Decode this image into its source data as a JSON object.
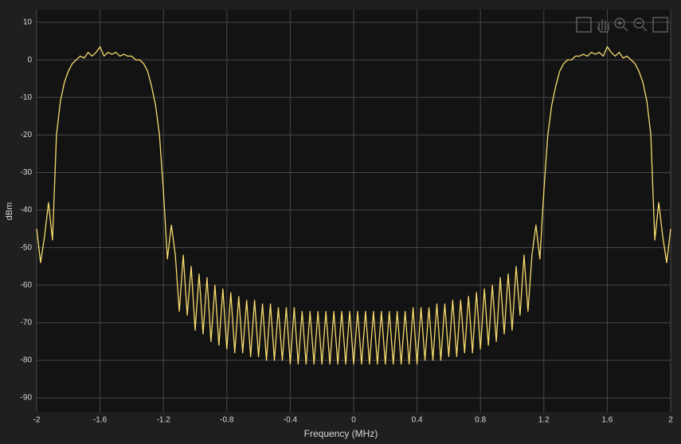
{
  "chart_data": {
    "type": "line",
    "xlabel": "Frequency (MHz)",
    "ylabel": "dBm",
    "xlim": [
      -2,
      2
    ],
    "ylim": [
      -93.8,
      13.4
    ],
    "xticks": [
      -2,
      -1.6,
      -1.2,
      -0.8,
      -0.4,
      0,
      0.4,
      0.8,
      1.2,
      1.6,
      2
    ],
    "yticks": [
      -90,
      -80,
      -70,
      -60,
      -50,
      -40,
      -30,
      -20,
      -10,
      0,
      10
    ],
    "grid": true,
    "x": [
      -2,
      -1.975,
      -1.95,
      -1.925,
      -1.9,
      -1.875,
      -1.85,
      -1.825,
      -1.8,
      -1.775,
      -1.75,
      -1.725,
      -1.7,
      -1.675,
      -1.65,
      -1.625,
      -1.6,
      -1.575,
      -1.55,
      -1.525,
      -1.5,
      -1.475,
      -1.45,
      -1.425,
      -1.4,
      -1.375,
      -1.35,
      -1.325,
      -1.3,
      -1.275,
      -1.25,
      -1.225,
      -1.2,
      -1.175,
      -1.15,
      -1.125,
      -1.1,
      -1.075,
      -1.05,
      -1.025,
      -1,
      -0.975,
      -0.95,
      -0.925,
      -0.9,
      -0.875,
      -0.85,
      -0.825,
      -0.8,
      -0.775,
      -0.75,
      -0.725,
      -0.7,
      -0.675,
      -0.65,
      -0.625,
      -0.6,
      -0.575,
      -0.55,
      -0.525,
      -0.5,
      -0.475,
      -0.45,
      -0.425,
      -0.4,
      -0.375,
      -0.35,
      -0.325,
      -0.3,
      -0.275,
      -0.25,
      -0.225,
      -0.2,
      -0.175,
      -0.15,
      -0.125,
      -0.1,
      -0.075,
      -0.05,
      -0.025,
      0,
      0.025,
      0.05,
      0.075,
      0.1,
      0.125,
      0.15,
      0.175,
      0.2,
      0.225,
      0.25,
      0.275,
      0.3,
      0.325,
      0.35,
      0.375,
      0.4,
      0.425,
      0.45,
      0.475,
      0.5,
      0.525,
      0.55,
      0.575,
      0.6,
      0.625,
      0.65,
      0.675,
      0.7,
      0.725,
      0.75,
      0.775,
      0.8,
      0.825,
      0.85,
      0.875,
      0.9,
      0.925,
      0.95,
      0.975,
      1,
      1.025,
      1.05,
      1.075,
      1.1,
      1.125,
      1.15,
      1.175,
      1.2,
      1.225,
      1.25,
      1.275,
      1.3,
      1.325,
      1.35,
      1.375,
      1.4,
      1.425,
      1.45,
      1.475,
      1.5,
      1.525,
      1.55,
      1.575,
      1.6,
      1.625,
      1.65,
      1.675,
      1.7,
      1.725,
      1.75,
      1.775,
      1.8,
      1.825,
      1.85,
      1.875,
      1.9,
      1.925,
      1.95,
      1.975,
      2
    ],
    "series": [
      {
        "color": "#f7dc6f",
        "values": [
          -45,
          -54,
          -47,
          -38,
          -48,
          -20,
          -11,
          -6,
          -3,
          -1,
          0,
          1,
          0.5,
          2,
          1,
          2,
          3.5,
          1,
          2,
          1.5,
          2,
          1,
          1.5,
          1,
          1,
          0,
          0,
          -1,
          -3,
          -7,
          -12,
          -20,
          -35,
          -53,
          -44,
          -52,
          -67,
          -52,
          -68,
          -55,
          -72,
          -57,
          -73,
          -58,
          -75,
          -60,
          -76,
          -61,
          -77,
          -62,
          -78,
          -63,
          -78,
          -64,
          -79,
          -64,
          -79,
          -65,
          -80,
          -65,
          -80,
          -66,
          -80,
          -66,
          -81,
          -66,
          -81,
          -67,
          -81,
          -67,
          -81,
          -67,
          -81,
          -67,
          -81,
          -67,
          -81,
          -67,
          -81,
          -67,
          -81,
          -67,
          -81,
          -67,
          -81,
          -67,
          -81,
          -67,
          -81,
          -67,
          -81,
          -67,
          -81,
          -67,
          -81,
          -66,
          -81,
          -66,
          -80,
          -66,
          -80,
          -65,
          -80,
          -65,
          -79,
          -64,
          -79,
          -64,
          -78,
          -63,
          -78,
          -62,
          -77,
          -61,
          -76,
          -60,
          -75,
          -58,
          -73,
          -57,
          -72,
          -55,
          -68,
          -52,
          -67,
          -52,
          -44,
          -53,
          -35,
          -20,
          -12,
          -7,
          -3,
          -1,
          0,
          0,
          1,
          1,
          1.5,
          1,
          2,
          1.5,
          2,
          1,
          3.5,
          2,
          1,
          2,
          0.5,
          1,
          0,
          -1,
          -3,
          -6,
          -11,
          -20,
          -48,
          -38,
          -47,
          -54,
          -45
        ]
      }
    ]
  }
}
